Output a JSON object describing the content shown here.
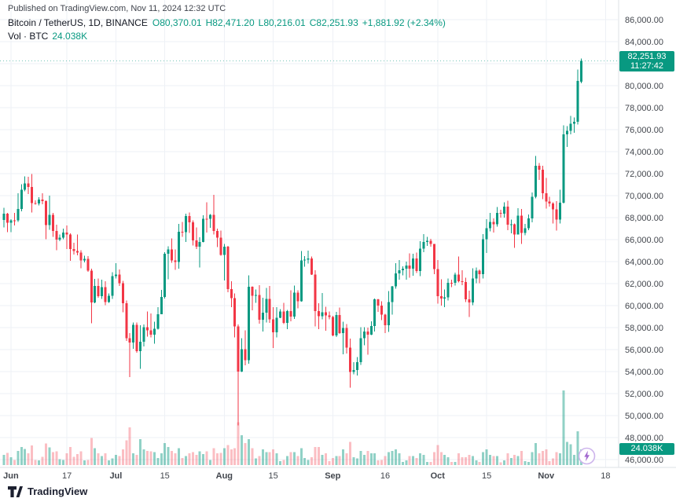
{
  "header": {
    "published": "Published on TradingView.com, Nov 11, 2024 12:32 UTC"
  },
  "legend": {
    "symbol": "Bitcoin / TetherUS, 1D, BINANCE",
    "o_label": "O",
    "o": "80,370.01",
    "h_label": "H",
    "h": "82,471.20",
    "l_label": "L",
    "l": "80,216.01",
    "c_label": "C",
    "c": "82,251.93",
    "change": "+1,881.92 (+2.34%)",
    "vol_label": "Vol · BTC",
    "vol_value": "24.038K"
  },
  "badges": {
    "last_price": "82,251.93",
    "countdown": "11:27:42",
    "volume": "24.038K"
  },
  "footer": {
    "brand": "TradingView"
  },
  "colors": {
    "up": "#089981",
    "down": "#F23645",
    "vol_up": "rgba(8,153,129,0.45)",
    "vol_down": "rgba(242,54,69,0.32)",
    "grid": "#eef1f6",
    "axis_text": "#42464d",
    "border": "#dde0e6",
    "badge_bg": "#089981",
    "flash_ring": "#cdb4ec",
    "flash_bolt": "#a269cf"
  },
  "price_axis": {
    "ticks": [
      86000,
      84000,
      82000,
      80000,
      78000,
      76000,
      74000,
      72000,
      70000,
      68000,
      66000,
      64000,
      62000,
      60000,
      58000,
      56000,
      54000,
      52000,
      50000,
      48000,
      46000
    ]
  },
  "time_axis": {
    "ticks": [
      {
        "label": "Jun",
        "i": 2
      },
      {
        "label": "17",
        "i": 18
      },
      {
        "label": "Jul",
        "i": 32
      },
      {
        "label": "15",
        "i": 46
      },
      {
        "label": "Aug",
        "i": 63
      },
      {
        "label": "15",
        "i": 77
      },
      {
        "label": "Sep",
        "i": 94
      },
      {
        "label": "16",
        "i": 109
      },
      {
        "label": "Oct",
        "i": 124
      },
      {
        "label": "15",
        "i": 138
      },
      {
        "label": "Nov",
        "i": 155
      },
      {
        "label": "18",
        "i": 172
      }
    ]
  },
  "chart_data": {
    "type": "candlestick",
    "symbol": "Bitcoin / TetherUS",
    "exchange": "BINANCE",
    "interval": "1D",
    "start_date": "2024-05-30",
    "end_date_axis": "2024-11-18",
    "last_bar_date": "2024-11-11",
    "ylim": [
      46000,
      86000
    ],
    "volume_unit": "K BTC",
    "columns": [
      "open",
      "high",
      "low",
      "close",
      "volume_k"
    ],
    "candles": [
      [
        67800,
        68900,
        67120,
        68350,
        16
      ],
      [
        68350,
        68440,
        66670,
        67530,
        19
      ],
      [
        67530,
        67850,
        66670,
        67760,
        12
      ],
      [
        67760,
        68430,
        67290,
        67750,
        8
      ],
      [
        67750,
        70200,
        67600,
        68800,
        22
      ],
      [
        68800,
        71050,
        68570,
        70550,
        28
      ],
      [
        70550,
        71750,
        70400,
        71100,
        25
      ],
      [
        71100,
        71700,
        70150,
        70780,
        18
      ],
      [
        70780,
        71950,
        68450,
        69310,
        30
      ],
      [
        69310,
        69580,
        69170,
        69300,
        8
      ],
      [
        69300,
        69850,
        69110,
        69640,
        7
      ],
      [
        69640,
        70200,
        69210,
        69500,
        13
      ],
      [
        69500,
        69560,
        66050,
        67310,
        33
      ],
      [
        67310,
        69990,
        66900,
        68250,
        27
      ],
      [
        68250,
        68440,
        66250,
        66770,
        20
      ],
      [
        66770,
        67350,
        65050,
        66010,
        21
      ],
      [
        66010,
        66480,
        65850,
        66190,
        9
      ],
      [
        66190,
        66990,
        66020,
        66630,
        8
      ],
      [
        66630,
        67300,
        65130,
        66470,
        18
      ],
      [
        66470,
        66570,
        64060,
        65140,
        28
      ],
      [
        65140,
        65720,
        64660,
        64960,
        13
      ],
      [
        64960,
        66480,
        64560,
        64830,
        17
      ],
      [
        64830,
        65020,
        63380,
        64090,
        21
      ],
      [
        64090,
        64540,
        63930,
        64250,
        7
      ],
      [
        64250,
        64500,
        63060,
        63180,
        8
      ],
      [
        63180,
        63370,
        58400,
        60280,
        42
      ],
      [
        60280,
        62420,
        60230,
        61780,
        26
      ],
      [
        61780,
        62480,
        60700,
        60850,
        18
      ],
      [
        60850,
        62360,
        60600,
        61680,
        14
      ],
      [
        61680,
        62200,
        60050,
        60320,
        18
      ],
      [
        60320,
        61100,
        60250,
        60890,
        7
      ],
      [
        60890,
        63050,
        60620,
        62680,
        10
      ],
      [
        62680,
        63850,
        62450,
        62830,
        16
      ],
      [
        62830,
        63290,
        61800,
        62030,
        14
      ],
      [
        62030,
        62250,
        59400,
        60200,
        24
      ],
      [
        60200,
        60480,
        56770,
        57050,
        38
      ],
      [
        57050,
        57500,
        53500,
        56660,
        58
      ],
      [
        56660,
        58470,
        56070,
        58240,
        18
      ],
      [
        58240,
        58450,
        55720,
        55850,
        16
      ],
      [
        55850,
        58230,
        54260,
        56700,
        40
      ],
      [
        56700,
        58300,
        56280,
        58050,
        24
      ],
      [
        58050,
        59450,
        57170,
        57740,
        22
      ],
      [
        57740,
        59300,
        57100,
        57340,
        21
      ],
      [
        57340,
        58520,
        56540,
        57900,
        20
      ],
      [
        57900,
        59850,
        57830,
        59230,
        11
      ],
      [
        59230,
        61440,
        59210,
        60790,
        18
      ],
      [
        60790,
        64870,
        60660,
        64720,
        34
      ],
      [
        64720,
        65390,
        62380,
        65090,
        28
      ],
      [
        65090,
        66120,
        63880,
        64090,
        22
      ],
      [
        64090,
        65100,
        63250,
        63970,
        18
      ],
      [
        63970,
        67440,
        63370,
        66710,
        26
      ],
      [
        66710,
        67610,
        66250,
        66680,
        11
      ],
      [
        66680,
        68370,
        65800,
        68150,
        14
      ],
      [
        68150,
        68480,
        66600,
        67580,
        18
      ],
      [
        67580,
        67750,
        65450,
        65930,
        20
      ],
      [
        65930,
        67100,
        65130,
        65370,
        16
      ],
      [
        65370,
        66200,
        63460,
        65780,
        21
      ],
      [
        65780,
        68200,
        65740,
        67910,
        17
      ],
      [
        67910,
        69400,
        66650,
        67900,
        21
      ],
      [
        67900,
        68320,
        67070,
        68250,
        8
      ],
      [
        68250,
        70080,
        66450,
        66780,
        26
      ],
      [
        66780,
        67000,
        65320,
        66190,
        18
      ],
      [
        66190,
        66830,
        64530,
        64620,
        19
      ],
      [
        64620,
        65600,
        62300,
        65350,
        26
      ],
      [
        65350,
        65420,
        61230,
        61490,
        31
      ],
      [
        61490,
        62200,
        59850,
        60690,
        24
      ],
      [
        60690,
        61100,
        57120,
        58120,
        26
      ],
      [
        58120,
        58300,
        49100,
        53990,
        66
      ],
      [
        53990,
        57050,
        53950,
        56030,
        46
      ],
      [
        56030,
        57740,
        54560,
        55030,
        34
      ],
      [
        55030,
        62750,
        54730,
        61710,
        40
      ],
      [
        61710,
        61760,
        59560,
        60880,
        26
      ],
      [
        60880,
        61470,
        60250,
        60950,
        10
      ],
      [
        60950,
        61860,
        58350,
        58720,
        14
      ],
      [
        58720,
        60700,
        57640,
        59350,
        24
      ],
      [
        59350,
        61590,
        58460,
        60600,
        20
      ],
      [
        60600,
        61800,
        58430,
        58740,
        20
      ],
      [
        58740,
        59850,
        56130,
        57560,
        24
      ],
      [
        57560,
        59840,
        57100,
        58890,
        18
      ],
      [
        58890,
        59670,
        58850,
        59480,
        6
      ],
      [
        59480,
        60250,
        58330,
        58440,
        8
      ],
      [
        58440,
        59620,
        57850,
        59490,
        14
      ],
      [
        59490,
        61400,
        58580,
        59010,
        20
      ],
      [
        59010,
        61830,
        58790,
        61170,
        20
      ],
      [
        61170,
        61400,
        59750,
        60380,
        14
      ],
      [
        60380,
        64950,
        60340,
        64090,
        26
      ],
      [
        64090,
        64500,
        63530,
        64170,
        11
      ],
      [
        64170,
        65000,
        63830,
        64270,
        8
      ],
      [
        64270,
        64480,
        62800,
        62830,
        12
      ],
      [
        62830,
        63210,
        58110,
        59500,
        28
      ],
      [
        59500,
        60230,
        57860,
        59030,
        28
      ],
      [
        59030,
        61160,
        58750,
        59390,
        16
      ],
      [
        59390,
        59900,
        57710,
        59120,
        18
      ],
      [
        59120,
        59450,
        58760,
        58970,
        6
      ],
      [
        58970,
        59070,
        57200,
        57300,
        11
      ],
      [
        57300,
        59430,
        57130,
        59130,
        14
      ],
      [
        59130,
        59810,
        57430,
        57490,
        14
      ],
      [
        57490,
        58520,
        55570,
        57970,
        24
      ],
      [
        57970,
        58330,
        55640,
        56180,
        18
      ],
      [
        56180,
        57010,
        52530,
        53950,
        36
      ],
      [
        53950,
        54850,
        53740,
        54160,
        12
      ],
      [
        54160,
        55320,
        53630,
        54870,
        10
      ],
      [
        54870,
        58040,
        54600,
        57040,
        22
      ],
      [
        57040,
        58040,
        56390,
        57650,
        16
      ],
      [
        57650,
        58000,
        55550,
        57340,
        22
      ],
      [
        57340,
        58580,
        57330,
        58130,
        18
      ],
      [
        58130,
        60650,
        57630,
        60570,
        18
      ],
      [
        60570,
        60610,
        59430,
        60000,
        7
      ],
      [
        60000,
        60390,
        58690,
        59180,
        8
      ],
      [
        59180,
        59240,
        57490,
        58210,
        14
      ],
      [
        58210,
        61320,
        57600,
        60310,
        20
      ],
      [
        60310,
        61780,
        59170,
        61760,
        22
      ],
      [
        61760,
        63850,
        61550,
        62940,
        24
      ],
      [
        62940,
        64130,
        62350,
        63200,
        18
      ],
      [
        63200,
        63560,
        62760,
        63350,
        5
      ],
      [
        63350,
        64000,
        62360,
        63650,
        7
      ],
      [
        63650,
        64750,
        62530,
        63340,
        14
      ],
      [
        63340,
        64700,
        62700,
        64300,
        14
      ],
      [
        64300,
        64820,
        62960,
        63150,
        11
      ],
      [
        63150,
        65840,
        62670,
        65180,
        18
      ],
      [
        65180,
        66500,
        64850,
        65790,
        16
      ],
      [
        65790,
        66260,
        65430,
        65890,
        5
      ],
      [
        65890,
        66080,
        65350,
        65600,
        5
      ],
      [
        65600,
        65620,
        62860,
        63330,
        20
      ],
      [
        63330,
        64130,
        60170,
        60840,
        31
      ],
      [
        60840,
        62380,
        60000,
        60650,
        20
      ],
      [
        60650,
        61460,
        59840,
        60750,
        16
      ],
      [
        60750,
        62480,
        60460,
        62070,
        12
      ],
      [
        62070,
        62370,
        61690,
        62060,
        5
      ],
      [
        62060,
        62990,
        61810,
        62820,
        5
      ],
      [
        62820,
        64470,
        62120,
        62230,
        18
      ],
      [
        62230,
        63200,
        61860,
        62160,
        12
      ],
      [
        62160,
        62540,
        60320,
        60580,
        12
      ],
      [
        60580,
        61340,
        58950,
        60290,
        16
      ],
      [
        60290,
        63390,
        60040,
        62450,
        14
      ],
      [
        62450,
        63460,
        62040,
        63190,
        7
      ],
      [
        63190,
        63290,
        62050,
        62850,
        5
      ],
      [
        62850,
        66500,
        62450,
        66050,
        20
      ],
      [
        66050,
        67840,
        64800,
        67040,
        24
      ],
      [
        67040,
        68420,
        66750,
        67610,
        16
      ],
      [
        67610,
        67940,
        66660,
        67400,
        14
      ],
      [
        67400,
        68980,
        67180,
        68420,
        14
      ],
      [
        68420,
        68700,
        68010,
        68360,
        4
      ],
      [
        68360,
        69400,
        68010,
        69000,
        7
      ],
      [
        69000,
        69520,
        66840,
        67370,
        18
      ],
      [
        67370,
        67810,
        66570,
        67410,
        11
      ],
      [
        67410,
        67470,
        65260,
        66450,
        16
      ],
      [
        66450,
        68850,
        66450,
        68170,
        14
      ],
      [
        68170,
        68770,
        65590,
        66600,
        22
      ],
      [
        66600,
        67440,
        66400,
        67020,
        6
      ],
      [
        67020,
        68290,
        66870,
        67930,
        5
      ],
      [
        67930,
        70280,
        67580,
        69910,
        20
      ],
      [
        69910,
        73600,
        69750,
        72720,
        34
      ],
      [
        72720,
        72960,
        71440,
        72340,
        18
      ],
      [
        72340,
        72700,
        69690,
        70220,
        22
      ],
      [
        70220,
        71600,
        68820,
        69480,
        24
      ],
      [
        69480,
        69910,
        69000,
        69290,
        6
      ],
      [
        69290,
        69380,
        67480,
        68740,
        10
      ],
      [
        68740,
        69500,
        66830,
        67810,
        20
      ],
      [
        67810,
        70550,
        67480,
        69360,
        18
      ],
      [
        69360,
        76400,
        69290,
        75570,
        115
      ],
      [
        75570,
        76330,
        74440,
        75900,
        36
      ],
      [
        75900,
        77240,
        75580,
        76550,
        32
      ],
      [
        76550,
        77100,
        75710,
        76700,
        16
      ],
      [
        76700,
        81460,
        76480,
        80430,
        52
      ],
      [
        80370,
        82471.2,
        80216.01,
        82251.93,
        24.038
      ]
    ]
  }
}
